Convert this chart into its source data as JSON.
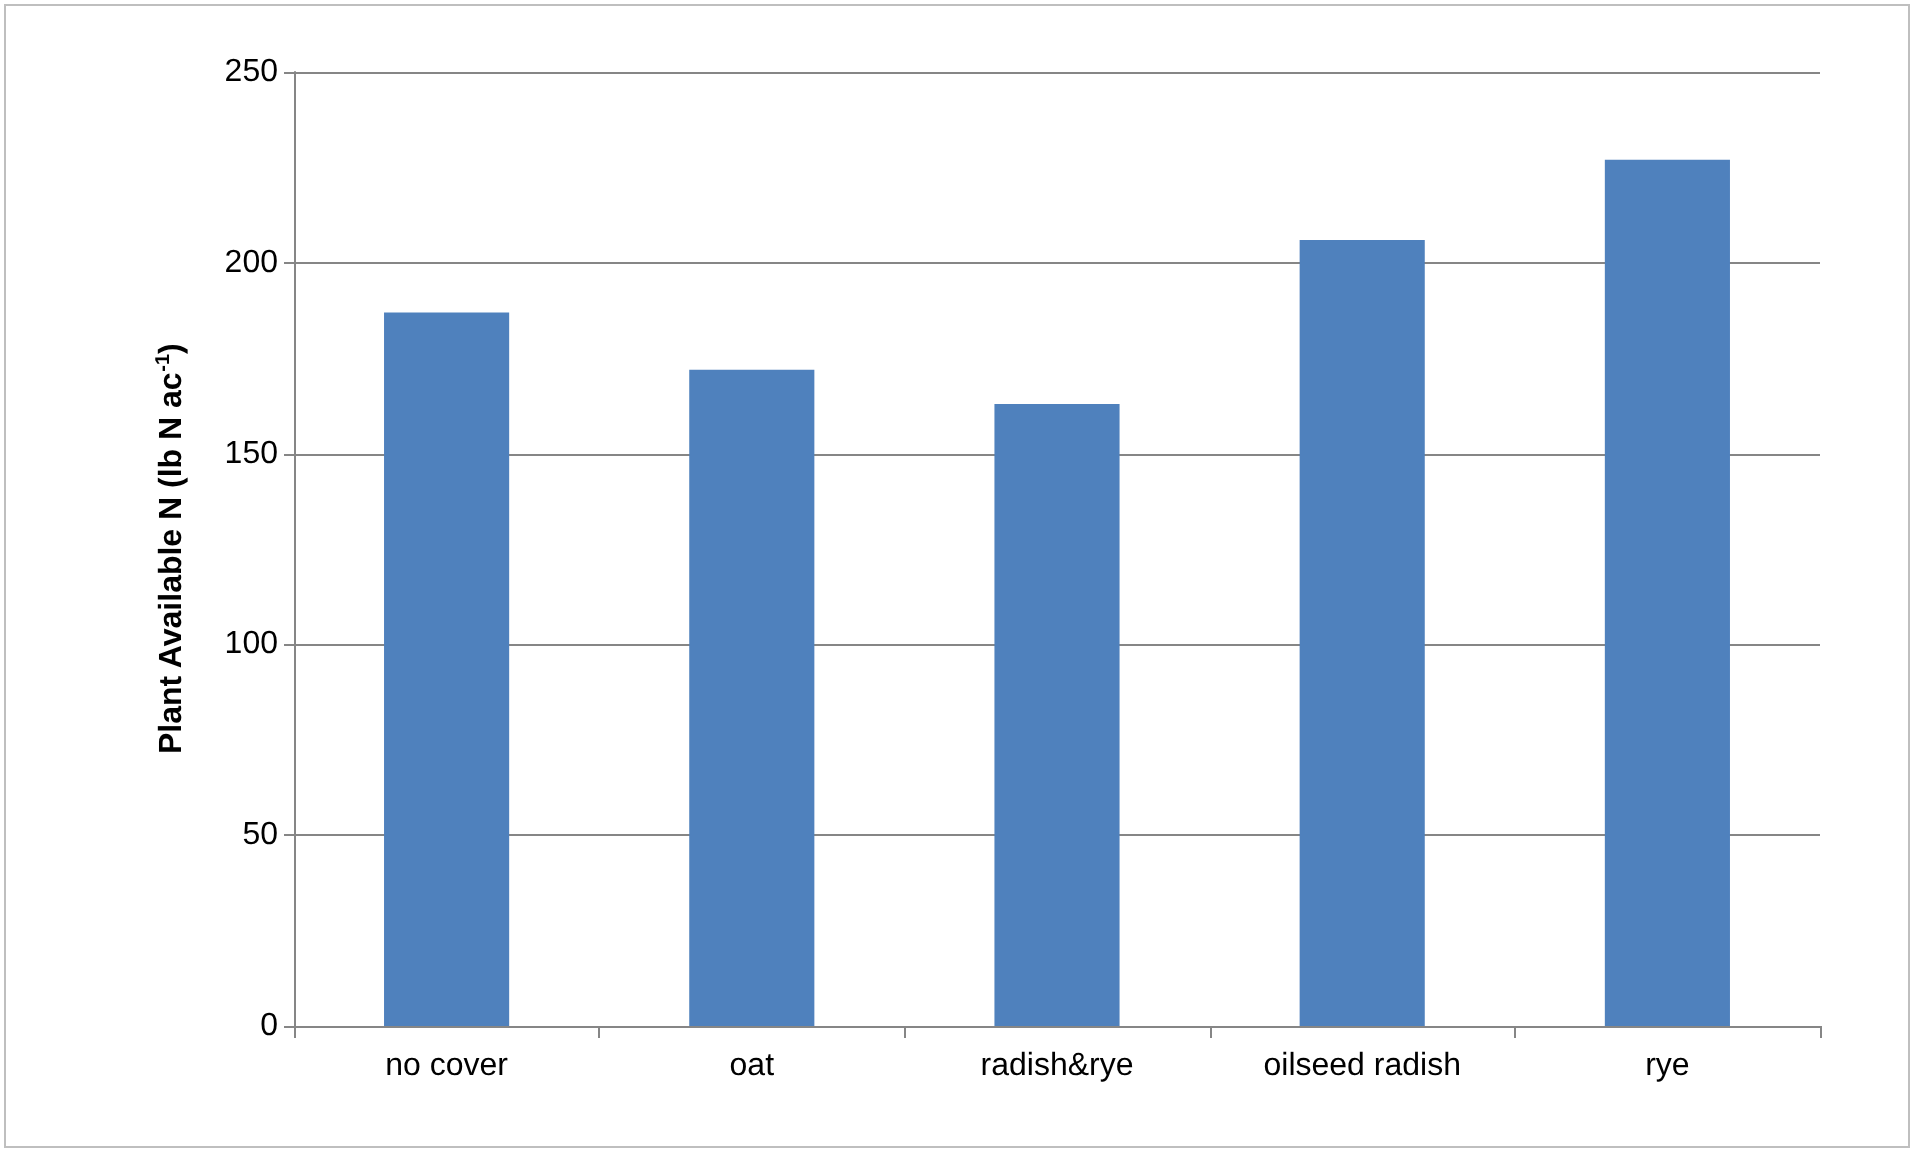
{
  "chart_data": {
    "type": "bar",
    "ylabel": "Plant Available N (lb N ac$^{-1}$)",
    "categories": [
      "no cover",
      "oat",
      "radish&rye",
      "oilseed radish",
      "rye"
    ],
    "values": [
      187,
      172,
      163,
      206,
      227
    ],
    "color": "#4f81bd",
    "ylim": [
      0,
      250
    ],
    "yticks": [
      0,
      50,
      100,
      150,
      200,
      250
    ],
    "grid": "y"
  }
}
